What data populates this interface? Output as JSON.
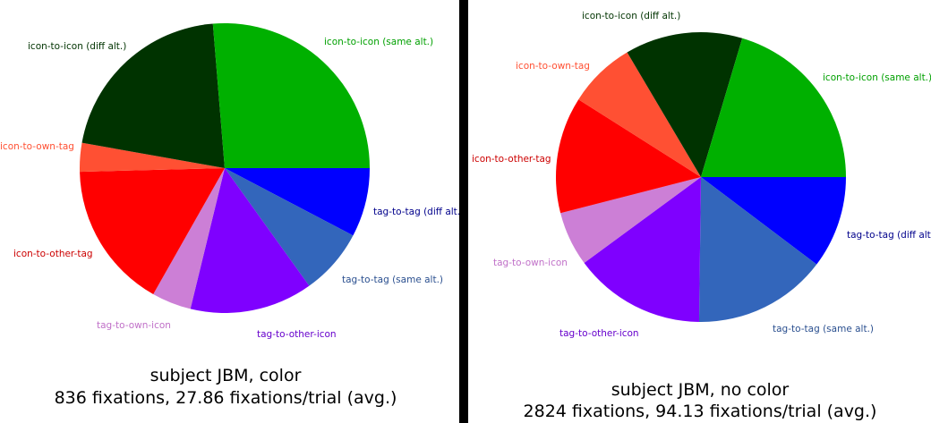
{
  "chart_data": [
    {
      "type": "pie",
      "title": "subject JBM, color",
      "subtitle": "836 fixations, 27.86 fixations/trial (avg.)",
      "slices": [
        {
          "label": "tag-to-tag (diff alt.)",
          "value": 7.7,
          "color": "#0000ff",
          "label_color": "#00008b"
        },
        {
          "label": "tag-to-tag (same alt.)",
          "value": 7.4,
          "color": "#3366bb",
          "label_color": "#2a4f8f"
        },
        {
          "label": "tag-to-other-icon",
          "value": 13.7,
          "color": "#7f00ff",
          "label_color": "#6600cc"
        },
        {
          "label": "tag-to-own-icon",
          "value": 4.4,
          "color": "#cc7fd6",
          "label_color": "#c070c8"
        },
        {
          "label": "icon-to-other-tag",
          "value": 16.4,
          "color": "#ff0000",
          "label_color": "#cc0000"
        },
        {
          "label": "icon-to-own-tag",
          "value": 3.2,
          "color": "#ff5033",
          "label_color": "#ff5033"
        },
        {
          "label": "icon-to-icon (diff alt.)",
          "value": 20.9,
          "color": "#003300",
          "label_color": "#003300"
        },
        {
          "label": "icon-to-icon (same alt.)",
          "value": 26.3,
          "color": "#00b000",
          "label_color": "#00a000"
        }
      ]
    },
    {
      "type": "pie",
      "title": "subject JBM, no color",
      "subtitle": "2824 fixations, 94.13 fixations/trial (avg.)",
      "slices": [
        {
          "label": "tag-to-tag (diff alt.)",
          "value": 10.3,
          "color": "#0000ff",
          "label_color": "#00008b"
        },
        {
          "label": "tag-to-tag (same alt.)",
          "value": 14.9,
          "color": "#3366bb",
          "label_color": "#2a4f8f"
        },
        {
          "label": "tag-to-other-icon",
          "value": 14.7,
          "color": "#7f00ff",
          "label_color": "#6600cc"
        },
        {
          "label": "tag-to-own-icon",
          "value": 6.1,
          "color": "#cc7fd6",
          "label_color": "#c070c8"
        },
        {
          "label": "icon-to-other-tag",
          "value": 13.0,
          "color": "#ff0000",
          "label_color": "#cc0000"
        },
        {
          "label": "icon-to-own-tag",
          "value": 7.5,
          "color": "#ff5033",
          "label_color": "#ff5033"
        },
        {
          "label": "icon-to-icon (diff alt.)",
          "value": 13.1,
          "color": "#003300",
          "label_color": "#003300"
        },
        {
          "label": "icon-to-icon (same alt.)",
          "value": 20.4,
          "color": "#00b000",
          "label_color": "#00a000"
        }
      ]
    }
  ]
}
